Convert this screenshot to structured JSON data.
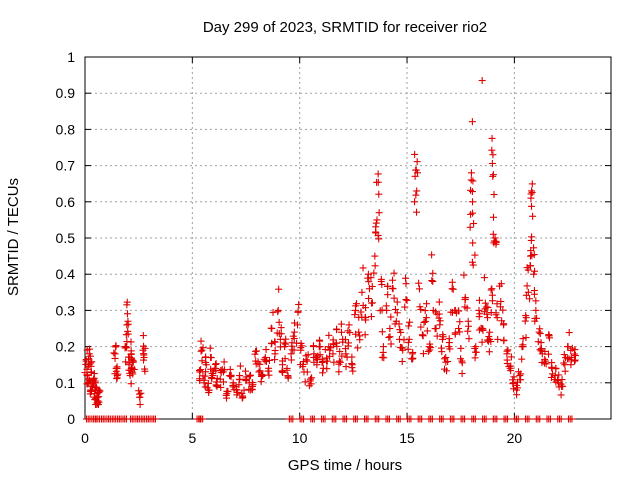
{
  "chart_data": {
    "type": "scatter",
    "title": "Day 299 of 2023, SRMTID for receiver rio2",
    "xlabel": "GPS time / hours",
    "ylabel": "SRMTID / TECUs",
    "xlim": [
      0,
      24.5
    ],
    "ylim": [
      0,
      1
    ],
    "xticks": [
      0,
      5,
      10,
      15,
      20
    ],
    "xtick_labels": [
      "0",
      "5",
      "10",
      "15",
      "20"
    ],
    "yticks": [
      0,
      0.1,
      0.2,
      0.3,
      0.4,
      0.5,
      0.6,
      0.7,
      0.8,
      0.9,
      1
    ],
    "ytick_labels": [
      "0",
      "0.1",
      "0.2",
      "0.3",
      "0.4",
      "0.5",
      "0.6",
      "0.7",
      "0.8",
      "0.9",
      "1"
    ],
    "grid": true,
    "marker": "+",
    "marker_color": "#e00000",
    "series": [
      {
        "name": "rio2",
        "x": [
          0.05,
          0.1,
          0.15,
          0.2,
          0.25,
          0.3,
          0.35,
          0.4,
          0.45,
          0.5,
          0.55,
          0.6,
          0.65,
          1.4,
          1.45,
          1.5,
          1.9,
          1.95,
          2.0,
          2.05,
          2.1,
          2.15,
          2.2,
          2.25,
          2.55,
          2.7,
          2.75,
          5.35,
          5.45,
          5.55,
          5.65,
          5.75,
          5.85,
          5.95,
          6.05,
          6.15,
          6.3,
          6.45,
          6.6,
          6.75,
          6.9,
          7.05,
          7.2,
          7.35,
          7.5,
          7.65,
          7.8,
          7.95,
          8.1,
          8.25,
          8.4,
          8.55,
          8.7,
          8.85,
          9.0,
          9.1,
          9.2,
          9.3,
          9.45,
          9.6,
          9.75,
          9.9,
          10.05,
          10.2,
          10.35,
          10.5,
          10.65,
          10.8,
          10.95,
          11.1,
          11.25,
          11.4,
          11.55,
          11.7,
          11.85,
          12.0,
          12.15,
          12.3,
          12.45,
          12.6,
          12.75,
          12.9,
          13.05,
          13.2,
          13.35,
          13.5,
          13.6,
          13.7,
          13.8,
          13.9,
          14.05,
          14.2,
          14.35,
          14.5,
          14.65,
          14.8,
          14.95,
          15.1,
          15.25,
          15.35,
          15.45,
          15.6,
          15.75,
          15.9,
          16.05,
          16.2,
          16.35,
          16.5,
          16.65,
          16.8,
          16.95,
          17.1,
          17.25,
          17.4,
          17.55,
          17.7,
          17.85,
          18.0,
          18.05,
          18.1,
          18.2,
          18.35,
          18.5,
          18.65,
          18.75,
          18.85,
          18.95,
          19.0,
          19.05,
          19.1,
          19.2,
          19.35,
          19.5,
          19.65,
          19.8,
          19.95,
          20.1,
          20.25,
          20.4,
          20.55,
          20.65,
          20.75,
          20.8,
          20.85,
          20.9,
          21.0,
          21.15,
          21.3,
          21.45,
          21.6,
          21.75,
          21.9,
          22.05,
          22.2,
          22.35,
          22.5,
          22.65,
          22.8,
          0.15,
          0.4,
          0.6,
          0.85,
          1.1,
          1.35,
          1.6,
          1.85,
          2.2,
          2.45,
          2.7,
          2.95,
          3.2,
          5.3,
          5.4,
          9.6,
          10.1,
          10.6,
          11.1,
          11.6,
          12.1,
          12.6,
          13.1,
          13.6,
          14.1,
          14.6,
          15.1,
          15.6,
          16.1,
          16.6,
          17.1,
          17.6,
          18.1,
          18.6,
          19.1,
          19.6,
          20.1,
          20.6,
          21.1,
          21.6,
          22.1,
          22.6
        ],
        "y": [
          0.16,
          0.12,
          0.1,
          0.18,
          0.08,
          0.13,
          0.09,
          0.11,
          0.07,
          0.1,
          0.06,
          0.05,
          0.08,
          0.18,
          0.14,
          0.12,
          0.2,
          0.26,
          0.27,
          0.15,
          0.12,
          0.18,
          0.14,
          0.16,
          0.06,
          0.19,
          0.17,
          0.13,
          0.19,
          0.1,
          0.15,
          0.08,
          0.17,
          0.12,
          0.14,
          0.09,
          0.11,
          0.13,
          0.07,
          0.12,
          0.1,
          0.08,
          0.12,
          0.06,
          0.11,
          0.1,
          0.09,
          0.16,
          0.13,
          0.12,
          0.17,
          0.14,
          0.25,
          0.18,
          0.3,
          0.22,
          0.15,
          0.2,
          0.12,
          0.18,
          0.24,
          0.26,
          0.19,
          0.13,
          0.16,
          0.11,
          0.17,
          0.15,
          0.2,
          0.14,
          0.16,
          0.19,
          0.18,
          0.21,
          0.16,
          0.22,
          0.18,
          0.26,
          0.15,
          0.3,
          0.24,
          0.35,
          0.28,
          0.4,
          0.32,
          0.45,
          0.55,
          0.57,
          0.38,
          0.2,
          0.3,
          0.25,
          0.36,
          0.27,
          0.22,
          0.19,
          0.33,
          0.22,
          0.18,
          0.6,
          0.63,
          0.31,
          0.23,
          0.28,
          0.2,
          0.38,
          0.25,
          0.29,
          0.22,
          0.17,
          0.2,
          0.36,
          0.3,
          0.25,
          0.16,
          0.33,
          0.27,
          0.68,
          0.6,
          0.54,
          0.2,
          0.3,
          0.25,
          0.32,
          0.28,
          0.22,
          0.36,
          0.73,
          0.62,
          0.5,
          0.28,
          0.31,
          0.26,
          0.18,
          0.14,
          0.1,
          0.08,
          0.12,
          0.2,
          0.28,
          0.35,
          0.45,
          0.63,
          0.56,
          0.4,
          0.3,
          0.24,
          0.18,
          0.16,
          0.23,
          0.14,
          0.12,
          0.1,
          0.09,
          0.15,
          0.2,
          0.17,
          0.16,
          0,
          0,
          0,
          0,
          0,
          0,
          0,
          0,
          0,
          0,
          0,
          0,
          0,
          0,
          0,
          0,
          0,
          0,
          0,
          0,
          0,
          0,
          0,
          0,
          0,
          0,
          0,
          0,
          0,
          0,
          0,
          0,
          0,
          0,
          0,
          0,
          0,
          0,
          0,
          0,
          0,
          0
        ]
      }
    ],
    "outlier_points": [
      {
        "x": 18.5,
        "y": 0.935
      },
      {
        "x": 2.55,
        "y": 0.06
      }
    ]
  }
}
